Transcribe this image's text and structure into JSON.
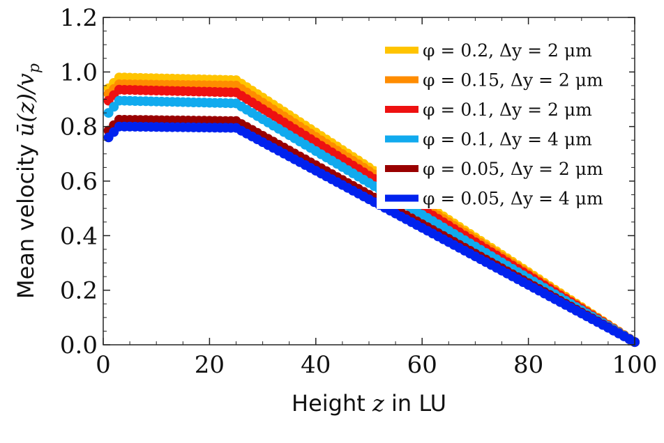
{
  "chart_data": {
    "type": "scatter",
    "xlabel": "Height z in LU",
    "ylabel": "Mean velocity ū(z)/v_p",
    "xlim": [
      0,
      100
    ],
    "ylim": [
      0,
      1.2
    ],
    "xticks": [
      "0",
      "20",
      "40",
      "60",
      "80",
      "100"
    ],
    "yticks": [
      "0.0",
      "0.2",
      "0.4",
      "0.6",
      "0.8",
      "1.0",
      "1.2"
    ],
    "grid": false,
    "legend_position": "top-right",
    "series": [
      {
        "name": "φ = 0.2, Δy = 2 μm",
        "color": "#ffc400",
        "points": [
          [
            1,
            0.94
          ],
          [
            3,
            0.98
          ],
          [
            25,
            0.97
          ],
          [
            100,
            0.01
          ]
        ]
      },
      {
        "name": "φ = 0.15, Δy = 2 μm",
        "color": "#ff8c00",
        "points": [
          [
            1,
            0.92
          ],
          [
            3,
            0.955
          ],
          [
            25,
            0.95
          ],
          [
            100,
            0.01
          ]
        ]
      },
      {
        "name": "φ = 0.1, Δy = 2 μm",
        "color": "#ee1111",
        "points": [
          [
            1,
            0.895
          ],
          [
            3,
            0.935
          ],
          [
            25,
            0.925
          ],
          [
            100,
            0.01
          ]
        ]
      },
      {
        "name": "φ = 0.1, Δy = 4 μm",
        "color": "#11aaee",
        "points": [
          [
            1,
            0.85
          ],
          [
            3,
            0.895
          ],
          [
            25,
            0.885
          ],
          [
            100,
            0.01
          ]
        ]
      },
      {
        "name": "φ = 0.05, Δy = 2 μm",
        "color": "#990000",
        "points": [
          [
            1,
            0.785
          ],
          [
            3,
            0.825
          ],
          [
            25,
            0.82
          ],
          [
            100,
            0.01
          ]
        ]
      },
      {
        "name": "φ = 0.05, Δy = 4 μm",
        "color": "#0022ee",
        "points": [
          [
            1,
            0.76
          ],
          [
            3,
            0.8
          ],
          [
            25,
            0.795
          ],
          [
            100,
            0.01
          ]
        ]
      }
    ]
  }
}
